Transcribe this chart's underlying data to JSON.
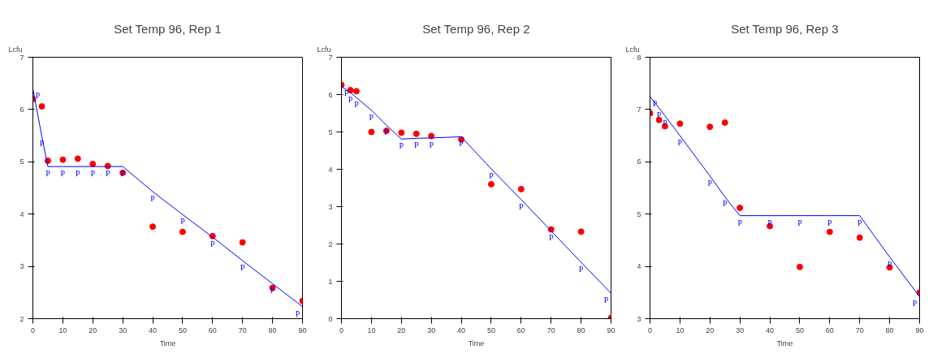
{
  "chart_data": [
    {
      "type": "scatter",
      "title": "Set Temp 96, Rep 1",
      "xlabel": "Time",
      "ylabel": "Lcfu",
      "xlim": [
        0,
        90
      ],
      "ylim": [
        2,
        7
      ],
      "xticks": [
        0,
        10,
        20,
        30,
        40,
        50,
        60,
        70,
        80,
        90
      ],
      "yticks": [
        2,
        3,
        4,
        5,
        6,
        7
      ],
      "grid": false,
      "x": [
        0,
        3,
        5,
        10,
        15,
        20,
        25,
        30,
        40,
        50,
        60,
        70,
        80,
        90
      ],
      "series": [
        {
          "marker": "circle",
          "color": "#ff0000",
          "values": [
            6.2,
            6.06,
            5.02,
            5.04,
            5.06,
            4.96,
            4.92,
            4.79,
            3.76,
            3.66,
            3.58,
            3.46,
            2.59,
            2.34
          ]
        },
        {
          "type": "line",
          "marker": "none",
          "line_style": "solid",
          "color": "#0000ff",
          "values": [
            6.4,
            5.48,
            4.91,
            4.91,
            4.91,
            4.91,
            4.91,
            4.91,
            4.43,
            3.99,
            3.56,
            3.11,
            2.67,
            2.23
          ],
          "value_labels": [
            "P",
            "P",
            "P",
            "P",
            "P",
            "P",
            "P",
            "P",
            "P",
            "P",
            "P",
            "P",
            "P",
            "P"
          ]
        }
      ]
    },
    {
      "type": "scatter",
      "title": "Set Temp 96, Rep 2",
      "xlabel": "Time",
      "ylabel": "Lcfu",
      "xlim": [
        0,
        90
      ],
      "ylim": [
        0,
        7
      ],
      "xticks": [
        0,
        10,
        20,
        30,
        40,
        50,
        60,
        70,
        80,
        90
      ],
      "yticks": [
        0,
        1,
        2,
        3,
        4,
        5,
        6,
        7
      ],
      "grid": false,
      "x": [
        0,
        3,
        5,
        10,
        15,
        20,
        25,
        30,
        40,
        50,
        60,
        70,
        80,
        90
      ],
      "series": [
        {
          "marker": "circle",
          "color": "#ff0000",
          "values": [
            6.26,
            6.12,
            6.09,
            5.0,
            5.03,
            4.98,
            4.95,
            4.89,
            4.8,
            3.6,
            3.47,
            2.39,
            2.33,
            0.02
          ]
        },
        {
          "type": "line",
          "marker": "none",
          "line_style": "solid",
          "color": "#0000ff",
          "values": [
            6.22,
            6.05,
            5.92,
            5.58,
            5.18,
            4.81,
            4.83,
            4.84,
            4.87,
            4.01,
            3.19,
            2.35,
            1.51,
            0.68
          ],
          "value_labels": [
            "P",
            "P",
            "P",
            "P",
            "P",
            "P",
            "P",
            "P",
            "P",
            "P",
            "P",
            "P",
            "P",
            "P"
          ]
        }
      ]
    },
    {
      "type": "scatter",
      "title": "Set Temp 96, Rep 3",
      "xlabel": "Time",
      "ylabel": "Lcfu",
      "xlim": [
        0,
        90
      ],
      "ylim": [
        3,
        8
      ],
      "xticks": [
        0,
        10,
        20,
        30,
        40,
        50,
        60,
        70,
        80,
        90
      ],
      "yticks": [
        3,
        4,
        5,
        6,
        7,
        8
      ],
      "grid": false,
      "x": [
        0,
        3,
        5,
        10,
        20,
        25,
        30,
        40,
        50,
        60,
        70,
        80,
        90
      ],
      "series": [
        {
          "marker": "circle",
          "color": "#ff0000",
          "values": [
            6.93,
            6.8,
            6.68,
            6.73,
            6.67,
            6.75,
            5.12,
            4.77,
            3.99,
            4.66,
            4.55,
            3.98,
            3.5
          ]
        },
        {
          "type": "line",
          "marker": "none",
          "line_style": "solid",
          "color": "#0000ff",
          "values": [
            7.25,
            7.03,
            6.88,
            6.5,
            5.73,
            5.33,
            4.97,
            4.97,
            4.97,
            4.97,
            4.97,
            4.18,
            3.42
          ],
          "value_labels": [
            "P",
            "P",
            "P",
            "P",
            "P",
            "P",
            "P",
            "P",
            "P",
            "P",
            "P",
            "P",
            "P"
          ]
        }
      ]
    }
  ]
}
